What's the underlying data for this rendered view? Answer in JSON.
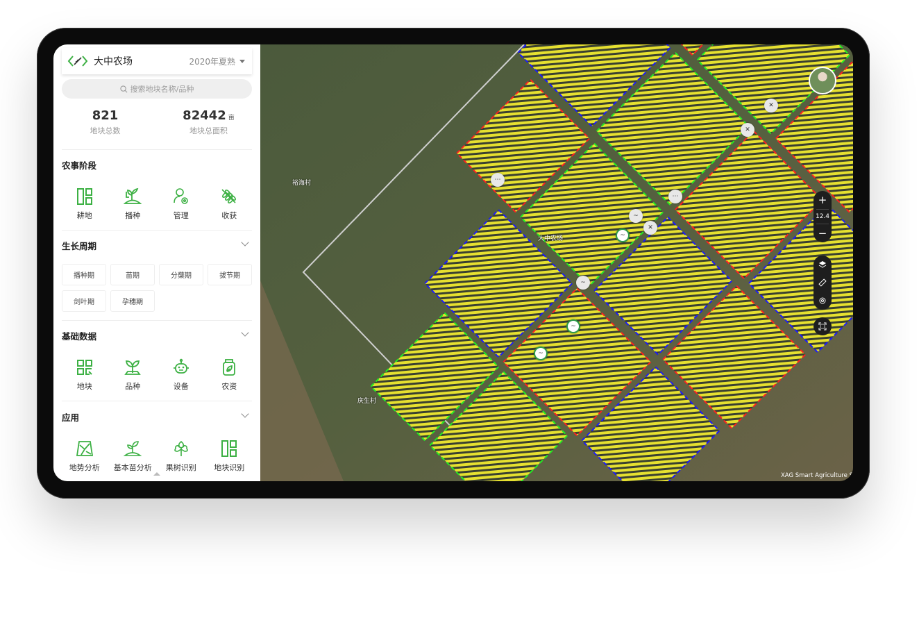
{
  "header": {
    "farm_name": "大中农场",
    "season": "2020年夏熟"
  },
  "search": {
    "placeholder": "搜索地块名称/品种"
  },
  "stats": {
    "plot_count": "821",
    "plot_count_label": "地块总数",
    "total_area": "82442",
    "area_unit": "亩",
    "total_area_label": "地块总面积"
  },
  "farming_stage": {
    "title": "农事阶段",
    "items": [
      {
        "label": "耕地",
        "icon": "field-grid-icon"
      },
      {
        "label": "播种",
        "icon": "sowing-icon"
      },
      {
        "label": "管理",
        "icon": "user-gear-icon"
      },
      {
        "label": "收获",
        "icon": "wheat-icon"
      }
    ]
  },
  "growth_cycle": {
    "title": "生长周期",
    "chips": [
      "播种期",
      "苗期",
      "分蘖期",
      "拔节期",
      "剑叶期",
      "孕穗期"
    ]
  },
  "basic_data": {
    "title": "基础数据",
    "items": [
      {
        "label": "地块",
        "icon": "plot-icon"
      },
      {
        "label": "品种",
        "icon": "seedling-icon"
      },
      {
        "label": "设备",
        "icon": "robot-icon"
      },
      {
        "label": "农资",
        "icon": "jar-icon"
      }
    ]
  },
  "applications": {
    "title": "应用",
    "items": [
      {
        "label": "地势分析",
        "icon": "terrain-icon"
      },
      {
        "label": "基本苗分析",
        "icon": "sprout-icon"
      },
      {
        "label": "果树识别",
        "icon": "tree-icon"
      },
      {
        "label": "地块识别",
        "icon": "field-grid-icon"
      }
    ]
  },
  "map": {
    "labels": [
      "裕海村",
      "大中农场",
      "庆生村"
    ],
    "zoom_level": "12.4",
    "attribution": "XAG Smart Agriculture S",
    "colors": {
      "parcel_fill": "#e6e030",
      "border_red": "#ff2020",
      "border_blue": "#1a1aff",
      "border_green": "#22ee22",
      "accent": "#3cb043"
    }
  }
}
